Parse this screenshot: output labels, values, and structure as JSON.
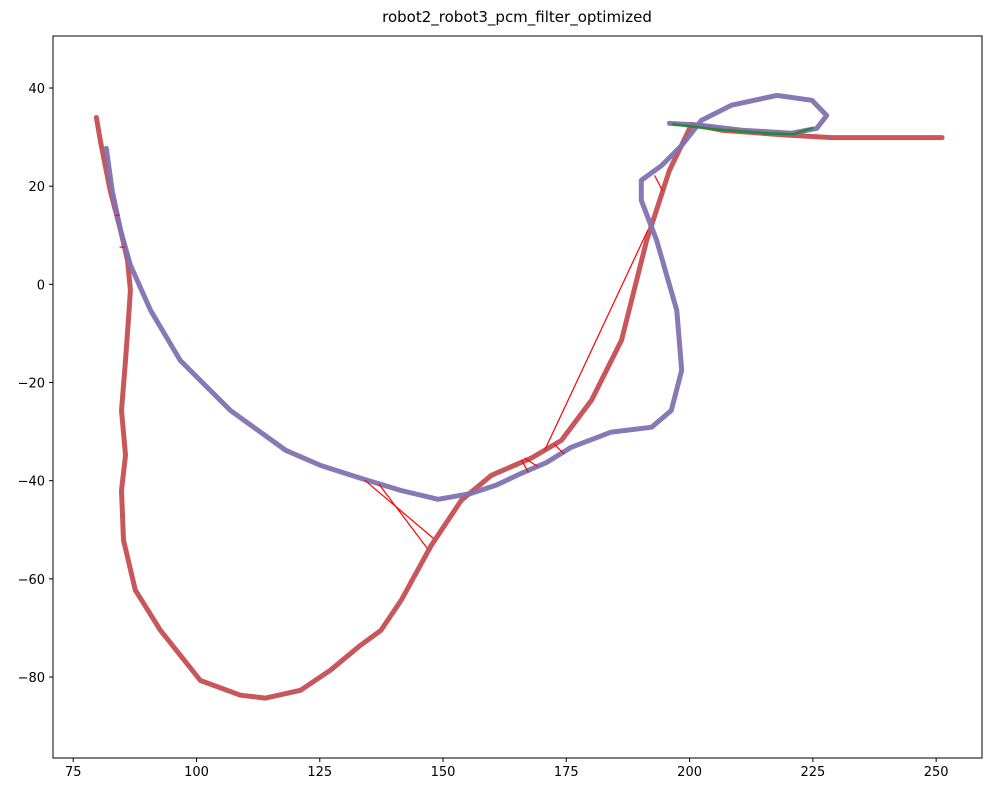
{
  "chart_data": {
    "type": "line",
    "title": "robot2_robot3_pcm_filter_optimized",
    "xlim": [
      70.9,
      259.3
    ],
    "ylim": [
      -96.5,
      50.6
    ],
    "xticks": [
      75,
      100,
      125,
      150,
      175,
      200,
      225,
      250
    ],
    "yticks": [
      {
        "value": -80,
        "label": "−80"
      },
      {
        "value": -60,
        "label": "−60"
      },
      {
        "value": -40,
        "label": "−40"
      },
      {
        "value": -20,
        "label": "−20"
      },
      0,
      20,
      40
    ],
    "series": [
      {
        "color": "#c44e52",
        "width": 5,
        "x": [
          79.7,
          80.5,
          82.5,
          84.6,
          86.0,
          86.6,
          86.2,
          85.6,
          84.8,
          85.6,
          84.8,
          85.2,
          87.6,
          92.7,
          100.8,
          108.9,
          114.0,
          121.1,
          127.2,
          133.3,
          137.4,
          141.5,
          147.6,
          153.7,
          159.8,
          167.9,
          174.0,
          180.1,
          186.2,
          191.3,
          195.9,
          200.4,
          206.5,
          218.7,
          228.9,
          243.1,
          251.2
        ],
        "y": [
          34.0,
          29.3,
          19.1,
          11.0,
          4.9,
          -1.2,
          -7.3,
          -15.5,
          -25.7,
          -34.8,
          -42.0,
          -52.1,
          -62.3,
          -70.5,
          -80.7,
          -83.7,
          -84.3,
          -82.7,
          -78.6,
          -73.5,
          -70.5,
          -64.4,
          -53.2,
          -44.0,
          -38.9,
          -35.4,
          -31.8,
          -23.6,
          -11.4,
          9.0,
          23.2,
          32.6,
          31.4,
          30.5,
          29.9,
          29.9,
          29.9
        ]
      },
      {
        "color": "#8172b2",
        "width": 5,
        "x": [
          81.7,
          82.9,
          84.6,
          86.6,
          90.7,
          96.7,
          106.9,
          118.1,
          125.2,
          133.3,
          141.5,
          149.0,
          155.7,
          160.8,
          165.9,
          171.0,
          176.0,
          184.1,
          192.3,
          196.3,
          198.4,
          197.4,
          193.3,
          190.2,
          190.2,
          194.3,
          198.4,
          202.4,
          208.5,
          217.7,
          224.8,
          227.8,
          225.8,
          220.7,
          210.6,
          202.4,
          195.9
        ],
        "y": [
          27.7,
          19.1,
          11.0,
          3.9,
          -5.3,
          -15.5,
          -25.7,
          -33.8,
          -36.9,
          -39.5,
          -42.0,
          -43.8,
          -42.6,
          -40.9,
          -38.5,
          -36.3,
          -33.2,
          -30.1,
          -29.1,
          -25.7,
          -17.5,
          -5.3,
          9.0,
          17.1,
          21.2,
          24.2,
          28.3,
          33.4,
          36.5,
          38.5,
          37.5,
          34.4,
          31.8,
          30.8,
          31.4,
          32.4,
          32.8
        ]
      },
      {
        "color": "#1f8a2e",
        "width": 2.5,
        "x": [
          196.7,
          205.0,
          215.0,
          221.0,
          224.8
        ],
        "y": [
          32.6,
          31.6,
          30.8,
          30.6,
          31.8
        ]
      }
    ],
    "matches": {
      "color": "#ff0000",
      "segments": [
        [
          134.1,
          -39.9,
          148.0,
          -51.7
        ],
        [
          137.0,
          -40.7,
          146.8,
          -53.8
        ],
        [
          165.9,
          -35.8,
          167.3,
          -38.3
        ],
        [
          166.5,
          -35.4,
          169.2,
          -37.1
        ],
        [
          170.6,
          -33.8,
          191.5,
          11.0
        ],
        [
          172.6,
          -32.6,
          174.6,
          -34.6
        ],
        [
          192.9,
          22.2,
          194.5,
          19.1
        ],
        [
          83.6,
          14.0,
          84.4,
          14.2
        ],
        [
          84.4,
          7.6,
          85.4,
          7.6
        ]
      ]
    }
  }
}
